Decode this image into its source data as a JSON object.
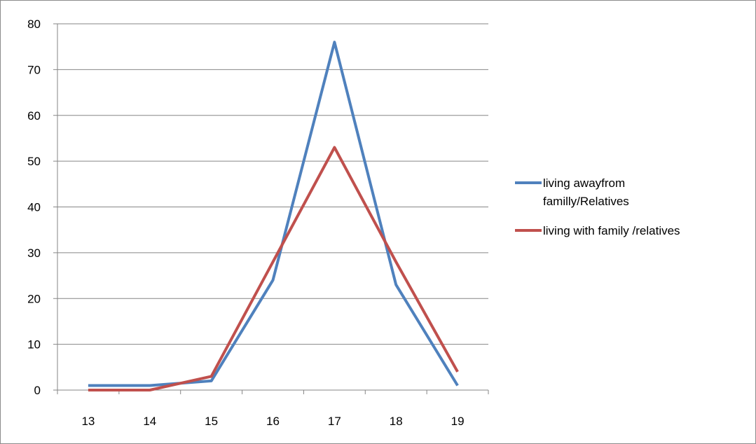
{
  "chart_data": {
    "type": "line",
    "categories": [
      "13",
      "14",
      "15",
      "16",
      "17",
      "18",
      "19"
    ],
    "series": [
      {
        "name": "living awayfrom familly/Relatives",
        "legend_lines": [
          "living awayfrom",
          "familly/Relatives"
        ],
        "color": "#4f81bd",
        "values": [
          1,
          1,
          2,
          24,
          76,
          23,
          1
        ]
      },
      {
        "name": "living with family /relatives",
        "legend_lines": [
          "living with family /relatives"
        ],
        "color": "#c0504d",
        "values": [
          0,
          0,
          3,
          28,
          53,
          28,
          4
        ]
      }
    ],
    "yticks": [
      "0",
      "10",
      "20",
      "30",
      "40",
      "50",
      "60",
      "70",
      "80"
    ],
    "ylim": [
      0,
      80
    ],
    "grid": true,
    "legend_position": "right"
  }
}
